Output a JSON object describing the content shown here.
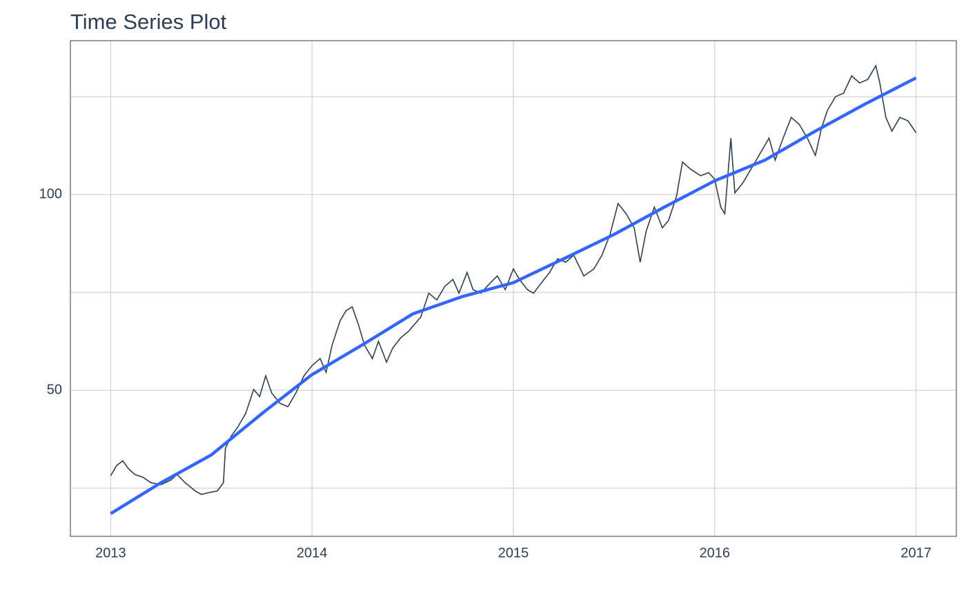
{
  "chart_data": {
    "type": "line",
    "title": "Time Series Plot",
    "x": [
      2013.0,
      2013.03,
      2013.06,
      2013.09,
      2013.12,
      2013.16,
      2013.2,
      2013.25,
      2013.3,
      2013.33,
      2013.37,
      2013.42,
      2013.45,
      2013.5,
      2013.53,
      2013.56,
      2013.57,
      2013.6,
      2013.63,
      2013.67,
      2013.71,
      2013.74,
      2013.77,
      2013.8,
      2013.84,
      2013.88,
      2013.92,
      2013.96,
      2014.0,
      2014.04,
      2014.07,
      2014.1,
      2014.14,
      2014.17,
      2014.2,
      2014.23,
      2014.26,
      2014.3,
      2014.33,
      2014.37,
      2014.4,
      2014.44,
      2014.48,
      2014.51,
      2014.54,
      2014.58,
      2014.62,
      2014.66,
      2014.7,
      2014.73,
      2014.77,
      2014.8,
      2014.84,
      2014.87,
      2014.92,
      2014.96,
      2015.0,
      2015.03,
      2015.07,
      2015.1,
      2015.14,
      2015.18,
      2015.22,
      2015.26,
      2015.3,
      2015.35,
      2015.4,
      2015.44,
      2015.48,
      2015.52,
      2015.56,
      2015.6,
      2015.63,
      2015.66,
      2015.7,
      2015.74,
      2015.77,
      2015.81,
      2015.84,
      2015.88,
      2015.93,
      2015.97,
      2016.0,
      2016.03,
      2016.05,
      2016.08,
      2016.1,
      2016.14,
      2016.18,
      2016.22,
      2016.27,
      2016.3,
      2016.34,
      2016.38,
      2016.42,
      2016.46,
      2016.5,
      2016.53,
      2016.56,
      2016.6,
      2016.64,
      2016.68,
      2016.72,
      2016.76,
      2016.8,
      2016.82,
      2016.85,
      2016.88,
      2016.92,
      2016.96,
      2017.0
    ],
    "values": [
      28.2,
      30.8,
      32,
      29.9,
      28.5,
      27.8,
      26.4,
      25.9,
      27.1,
      28.5,
      26.4,
      24.3,
      23.4,
      24,
      24.3,
      26.4,
      35.2,
      38.4,
      40.5,
      44,
      50.2,
      48.4,
      53.7,
      49.3,
      46.7,
      45.8,
      49.3,
      53.7,
      56.3,
      58.1,
      54.6,
      61.6,
      67.8,
      70.4,
      71.3,
      66.9,
      61.6,
      58.1,
      62.5,
      57.2,
      60.7,
      63.4,
      65.1,
      66.9,
      68.7,
      74.8,
      73.1,
      76.6,
      78.3,
      74.8,
      80.1,
      75.7,
      74.8,
      76.6,
      79.2,
      75.7,
      81,
      78.3,
      75.7,
      74.8,
      77.5,
      80.1,
      83.6,
      82.7,
      84.5,
      79.2,
      81,
      84.5,
      89.8,
      97.7,
      95.1,
      91.5,
      82.7,
      90.7,
      96.8,
      91.5,
      93.3,
      99.5,
      108.3,
      106.5,
      104.8,
      105.6,
      103.9,
      96.8,
      95.1,
      114.4,
      100.4,
      103,
      106.5,
      110,
      114.4,
      108.8,
      114.4,
      119.7,
      117.9,
      114.4,
      110,
      116.9,
      121.5,
      125,
      125.9,
      130.3,
      128.5,
      129.4,
      132.9,
      128.5,
      119.7,
      116.2,
      119.7,
      118.8,
      115.8
    ],
    "color": "#2c3e50",
    "trend": {
      "x": [
        2013.0,
        2013.25,
        2013.5,
        2013.75,
        2014.0,
        2014.25,
        2014.5,
        2014.75,
        2015.0,
        2015.25,
        2015.5,
        2015.75,
        2016.0,
        2016.25,
        2016.5,
        2016.75,
        2017.0
      ],
      "values": [
        18.5,
        26.4,
        33.5,
        44,
        54,
        61.6,
        69.5,
        74,
        77.5,
        83.6,
        89.8,
        96.8,
        103.5,
        108.8,
        116.2,
        123.2,
        129.8
      ],
      "color": "#3366ff"
    },
    "xlim": [
      2012.8,
      2017.2
    ],
    "xticks": [
      2013,
      2014,
      2015,
      2016,
      2017
    ],
    "ylim": [
      12.7,
      139.3
    ],
    "yticks": [
      50,
      100
    ],
    "grid": true
  }
}
